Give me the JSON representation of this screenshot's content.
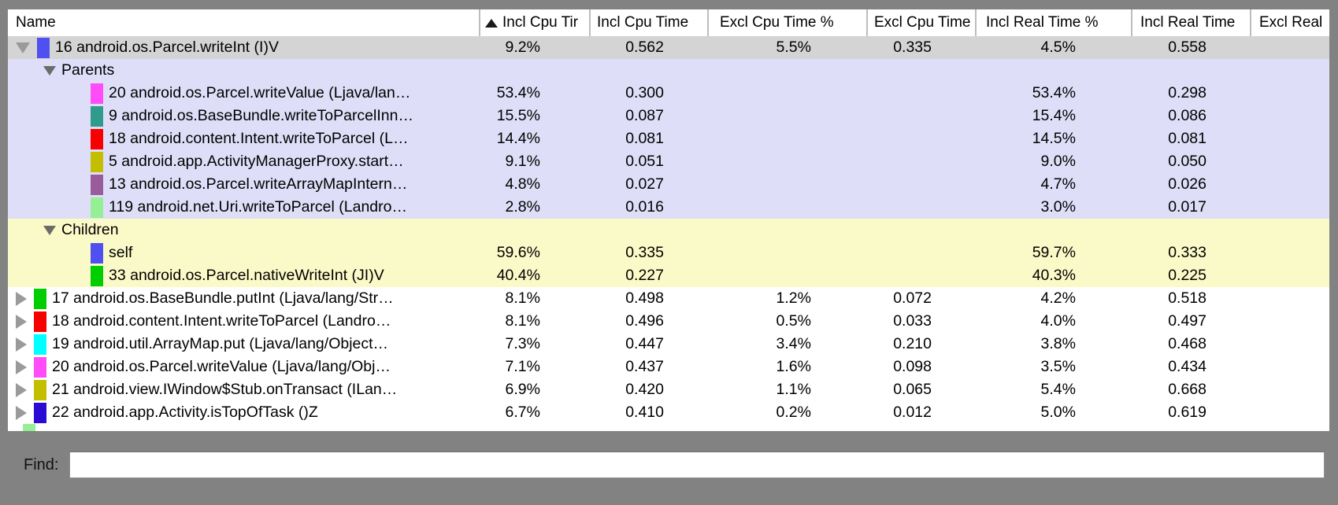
{
  "table": {
    "columns": [
      {
        "key": "name",
        "label": "Name"
      },
      {
        "key": "incl_cpu_time_pct",
        "label": "Incl Cpu Tir",
        "sorted": true
      },
      {
        "key": "incl_cpu_time",
        "label": "Incl Cpu Time"
      },
      {
        "key": "excl_cpu_time_pct",
        "label": "Excl Cpu Time %"
      },
      {
        "key": "excl_cpu_time",
        "label": "Excl Cpu Time"
      },
      {
        "key": "incl_real_time_pct",
        "label": "Incl Real Time %"
      },
      {
        "key": "incl_real_time",
        "label": "Incl Real Time"
      },
      {
        "key": "excl_real_time",
        "label": "Excl Real"
      }
    ],
    "rows": [
      {
        "name": "16 android.os.Parcel.writeInt (I)V",
        "bg": "sel",
        "indent": "top",
        "expander": "down",
        "swatch": "#5050f0",
        "selected": true,
        "values": [
          "9.2%",
          "0.562",
          "5.5%",
          "0.335",
          "4.5%",
          "0.558",
          ""
        ]
      },
      {
        "name": "Parents",
        "bg": "lav",
        "indent": "sec",
        "expander": "down-small",
        "swatch": null,
        "values": [
          "",
          "",
          "",
          "",
          "",
          "",
          ""
        ]
      },
      {
        "name": "20 android.os.Parcel.writeValue (Ljava/lan…",
        "bg": "lav",
        "indent": "sub",
        "expander": null,
        "swatch": "#ff4cf8",
        "values": [
          "53.4%",
          "0.300",
          "",
          "",
          "53.4%",
          "0.298",
          ""
        ]
      },
      {
        "name": "9 android.os.BaseBundle.writeToParcelInn…",
        "bg": "lav",
        "indent": "sub",
        "expander": null,
        "swatch": "#2e9b8c",
        "values": [
          "15.5%",
          "0.087",
          "",
          "",
          "15.4%",
          "0.086",
          ""
        ]
      },
      {
        "name": "18 android.content.Intent.writeToParcel (L…",
        "bg": "lav",
        "indent": "sub",
        "expander": null,
        "swatch": "#f80000",
        "values": [
          "14.4%",
          "0.081",
          "",
          "",
          "14.5%",
          "0.081",
          ""
        ]
      },
      {
        "name": "5 android.app.ActivityManagerProxy.start…",
        "bg": "lav",
        "indent": "sub",
        "expander": null,
        "swatch": "#c3bf00",
        "values": [
          "9.1%",
          "0.051",
          "",
          "",
          "9.0%",
          "0.050",
          ""
        ]
      },
      {
        "name": "13 android.os.Parcel.writeArrayMapIntern…",
        "bg": "lav",
        "indent": "sub",
        "expander": null,
        "swatch": "#9a5b9a",
        "values": [
          "4.8%",
          "0.027",
          "",
          "",
          "4.7%",
          "0.026",
          ""
        ]
      },
      {
        "name": "119 android.net.Uri.writeToParcel (Landro…",
        "bg": "lav",
        "indent": "sub",
        "expander": null,
        "swatch": "#95ef95",
        "values": [
          "2.8%",
          "0.016",
          "",
          "",
          "3.0%",
          "0.017",
          ""
        ]
      },
      {
        "name": "Children",
        "bg": "yel",
        "indent": "sec",
        "expander": "down-small",
        "swatch": null,
        "values": [
          "",
          "",
          "",
          "",
          "",
          "",
          ""
        ]
      },
      {
        "name": "self",
        "bg": "yel",
        "indent": "sub",
        "expander": null,
        "swatch": "#5050f0",
        "values": [
          "59.6%",
          "0.335",
          "",
          "",
          "59.7%",
          "0.333",
          ""
        ]
      },
      {
        "name": "33 android.os.Parcel.nativeWriteInt (JI)V",
        "bg": "yel",
        "indent": "sub",
        "expander": null,
        "swatch": "#00ce00",
        "values": [
          "40.4%",
          "0.227",
          "",
          "",
          "40.3%",
          "0.225",
          ""
        ]
      },
      {
        "name": "17 android.os.BaseBundle.putInt (Ljava/lang/Str…",
        "bg": "white",
        "indent": "top",
        "expander": "right",
        "swatch": "#00ce00",
        "values": [
          "8.1%",
          "0.498",
          "1.2%",
          "0.072",
          "4.2%",
          "0.518",
          ""
        ]
      },
      {
        "name": "18 android.content.Intent.writeToParcel (Landro…",
        "bg": "white",
        "indent": "top",
        "expander": "right",
        "swatch": "#f80000",
        "values": [
          "8.1%",
          "0.496",
          "0.5%",
          "0.033",
          "4.0%",
          "0.497",
          ""
        ]
      },
      {
        "name": "19 android.util.ArrayMap.put (Ljava/lang/Object…",
        "bg": "white",
        "indent": "top",
        "expander": "right",
        "swatch": "#00ffff",
        "values": [
          "7.3%",
          "0.447",
          "3.4%",
          "0.210",
          "3.8%",
          "0.468",
          ""
        ]
      },
      {
        "name": "20 android.os.Parcel.writeValue (Ljava/lang/Obj…",
        "bg": "white",
        "indent": "top",
        "expander": "right",
        "swatch": "#ff4cf8",
        "values": [
          "7.1%",
          "0.437",
          "1.6%",
          "0.098",
          "3.5%",
          "0.434",
          ""
        ]
      },
      {
        "name": "21 android.view.IWindow$Stub.onTransact (ILan…",
        "bg": "white",
        "indent": "top",
        "expander": "right",
        "swatch": "#c3bf00",
        "values": [
          "6.9%",
          "0.420",
          "1.1%",
          "0.065",
          "5.4%",
          "0.668",
          ""
        ]
      },
      {
        "name": "22 android.app.Activity.isTopOfTask ()Z",
        "bg": "white",
        "indent": "top",
        "expander": "right",
        "swatch": "#2a0bd3",
        "values": [
          "6.7%",
          "0.410",
          "0.2%",
          "0.012",
          "5.0%",
          "0.619",
          ""
        ]
      },
      {
        "name": "",
        "bg": "white",
        "indent": "top",
        "expander": null,
        "swatch": "#95ef95",
        "partial": true,
        "values": [
          "",
          "",
          "",
          "",
          "",
          "",
          ""
        ]
      }
    ]
  },
  "find": {
    "label": "Find:",
    "value": ""
  },
  "colors": {
    "frame": "#828282",
    "selected_row": "#d4d4d4",
    "parents_section": "#dedef8",
    "children_section": "#fafac8",
    "row_default": "#ffffff"
  }
}
